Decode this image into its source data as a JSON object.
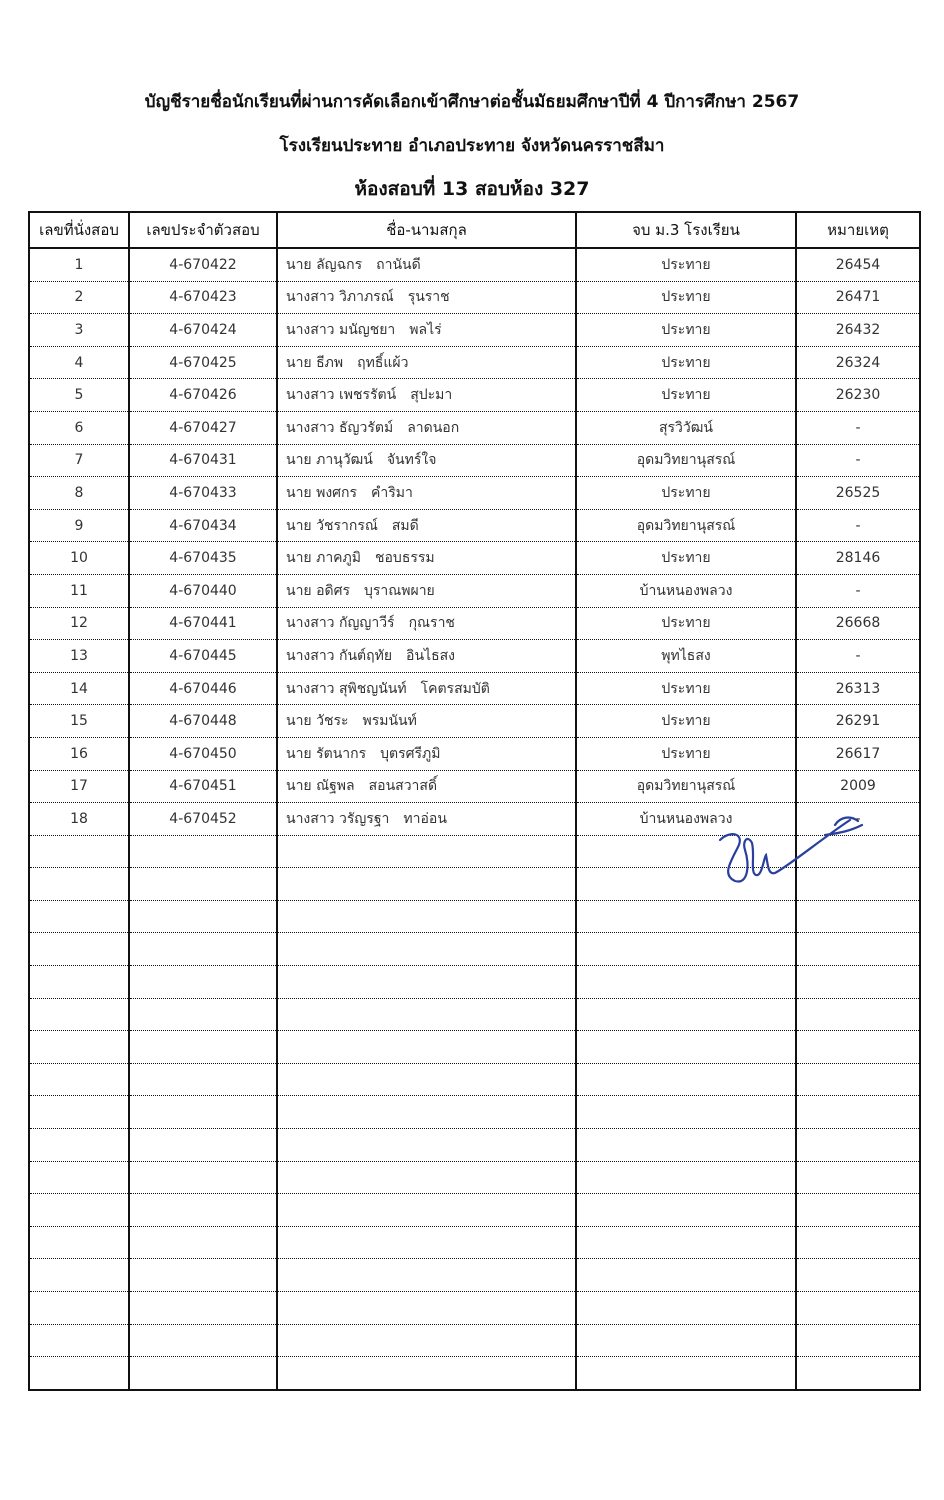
{
  "header": {
    "line1": "บัญชีรายชื่อนักเรียนที่ผ่านการคัดเลือกเข้าศึกษาต่อชั้นมัธยมศึกษาปีที่ 4 ปีการศึกษา 2567",
    "line2": "โรงเรียนประทาย  อำเภอประทาย  จังหวัดนครราชสีมา",
    "line3": "ห้องสอบที่ 13  สอบห้อง 327"
  },
  "table": {
    "columns": [
      "เลขที่นั่งสอบ",
      "เลขประจำตัวสอบ",
      "ชื่อ-นามสกุล",
      "จบ ม.3 โรงเรียน",
      "หมายเหตุ"
    ],
    "rows": [
      {
        "no": "1",
        "id": "4-670422",
        "prefix": "นาย",
        "first": "ลัญฉกร",
        "last": "ถานันดี",
        "school": "ประทาย",
        "note": "26454"
      },
      {
        "no": "2",
        "id": "4-670423",
        "prefix": "นางสาว",
        "first": "วิภาภรณ์",
        "last": "รุนราช",
        "school": "ประทาย",
        "note": "26471"
      },
      {
        "no": "3",
        "id": "4-670424",
        "prefix": "นางสาว",
        "first": "มนัญชยา",
        "last": "พลไร่",
        "school": "ประทาย",
        "note": "26432"
      },
      {
        "no": "4",
        "id": "4-670425",
        "prefix": "นาย",
        "first": "ธีภพ",
        "last": "ฤทธิ์แผ้ว",
        "school": "ประทาย",
        "note": "26324"
      },
      {
        "no": "5",
        "id": "4-670426",
        "prefix": "นางสาว",
        "first": "เพชรรัตน์",
        "last": "สุปะมา",
        "school": "ประทาย",
        "note": "26230"
      },
      {
        "no": "6",
        "id": "4-670427",
        "prefix": "นางสาว",
        "first": "ธัญวรัตม์",
        "last": "ลาดนอก",
        "school": "สุรวิวัฒน์",
        "note": "-"
      },
      {
        "no": "7",
        "id": "4-670431",
        "prefix": "นาย",
        "first": "ภานุวัฒน์",
        "last": "จันทร์ใจ",
        "school": "อุดมวิทยานุสรณ์",
        "note": "-"
      },
      {
        "no": "8",
        "id": "4-670433",
        "prefix": "นาย",
        "first": "พงศกร",
        "last": "คำริมา",
        "school": "ประทาย",
        "note": "26525"
      },
      {
        "no": "9",
        "id": "4-670434",
        "prefix": "นาย",
        "first": "วัชรากรณ์",
        "last": "สมดี",
        "school": "อุดมวิทยานุสรณ์",
        "note": "-"
      },
      {
        "no": "10",
        "id": "4-670435",
        "prefix": "นาย",
        "first": "ภาคภูมิ",
        "last": "ชอบธรรม",
        "school": "ประทาย",
        "note": "28146"
      },
      {
        "no": "11",
        "id": "4-670440",
        "prefix": "นาย",
        "first": "อดิศร",
        "last": "บุราณพผาย",
        "school": "บ้านหนองพลวง",
        "note": "-"
      },
      {
        "no": "12",
        "id": "4-670441",
        "prefix": "นางสาว",
        "first": "กัญญาวีร์",
        "last": "กุณราช",
        "school": "ประทาย",
        "note": "26668"
      },
      {
        "no": "13",
        "id": "4-670445",
        "prefix": "นางสาว",
        "first": "กันต์ฤทัย",
        "last": "อินไธสง",
        "school": "พุทไธสง",
        "note": "-"
      },
      {
        "no": "14",
        "id": "4-670446",
        "prefix": "นางสาว",
        "first": "สุพิชญนันท์",
        "last": "โคตรสมบัติ",
        "school": "ประทาย",
        "note": "26313"
      },
      {
        "no": "15",
        "id": "4-670448",
        "prefix": "นาย",
        "first": "วัชระ",
        "last": "พรมนันท์",
        "school": "ประทาย",
        "note": "26291"
      },
      {
        "no": "16",
        "id": "4-670450",
        "prefix": "นาย",
        "first": "รัตนากร",
        "last": "บุตรศรีภูมิ",
        "school": "ประทาย",
        "note": "26617"
      },
      {
        "no": "17",
        "id": "4-670451",
        "prefix": "นาย",
        "first": "ณัฐพล",
        "last": "สอนสวาสดิ์",
        "school": "อุดมวิทยานุสรณ์",
        "note": "2009"
      },
      {
        "no": "18",
        "id": "4-670452",
        "prefix": "นางสาว",
        "first": "วรัญรฐา",
        "last": "ทาอ่อน",
        "school": "บ้านหนองพลวง",
        "note": "-"
      }
    ]
  },
  "signature_color": "#2a3f9e"
}
